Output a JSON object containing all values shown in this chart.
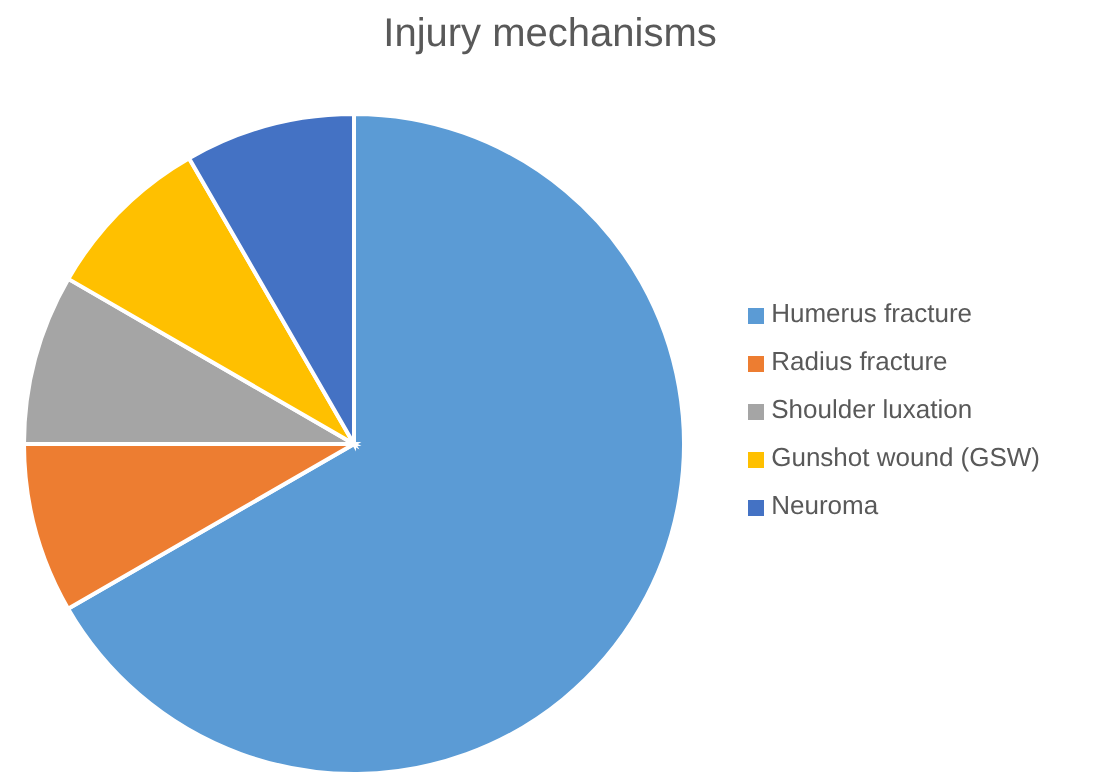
{
  "chart_data": {
    "type": "pie",
    "title": "Injury mechanisms",
    "categories": [
      "Humerus fracture",
      "Radius fracture",
      "Shoulder luxation",
      "Gunshot wound (GSW)",
      "Neuroma"
    ],
    "values": [
      66.68,
      8.33,
      8.33,
      8.33,
      8.33
    ],
    "colors": [
      "#5b9bd5",
      "#ed7d31",
      "#a5a5a5",
      "#ffc000",
      "#4472c4"
    ],
    "legend": "right"
  }
}
